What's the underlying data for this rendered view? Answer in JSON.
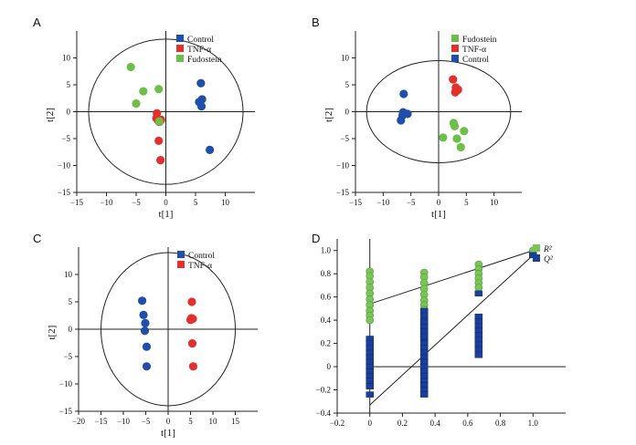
{
  "colors": {
    "control": "#1f4fa8",
    "tnf": "#e3302d",
    "fudostein": "#6cbf4a",
    "r2": "#7cc45a",
    "q2": "#1b3f99",
    "axis": "#222222"
  },
  "chart_data": [
    {
      "panel": "A",
      "type": "scatter",
      "xlabel": "t[1]",
      "ylabel": "t[2]",
      "xlim": [
        -15,
        15
      ],
      "ylim": [
        -15,
        15
      ],
      "xticks": [
        -15,
        -10,
        -5,
        0,
        5,
        10
      ],
      "yticks": [
        -15,
        -10,
        -5,
        0,
        5,
        10
      ],
      "ellipse": {
        "rx": 13,
        "ry": 13.5
      },
      "legend": {
        "position": "top-right",
        "entries": [
          "Control",
          "TNF-α",
          "Fudostein"
        ]
      },
      "series": [
        {
          "name": "Control",
          "color_key": "control",
          "x": [
            5.9,
            6.1,
            5.6,
            6.0,
            7.4
          ],
          "y": [
            5.3,
            2.3,
            1.8,
            1.0,
            -7.1
          ]
        },
        {
          "name": "TNF-α",
          "color_key": "tnf",
          "x": [
            -1.5,
            -1.3,
            -1.1,
            -0.8,
            -1.2,
            -1.6,
            -0.9
          ],
          "y": [
            -0.3,
            -1.6,
            -1.9,
            -1.5,
            -5.4,
            -1.2,
            -9.0
          ]
        },
        {
          "name": "Fudostein",
          "color_key": "fudostein",
          "x": [
            -5.9,
            -3.8,
            -1.2,
            -5.0,
            -1.1
          ],
          "y": [
            8.3,
            3.8,
            4.2,
            1.5,
            -1.8
          ]
        }
      ]
    },
    {
      "panel": "B",
      "type": "scatter",
      "xlabel": "t[1]",
      "ylabel": "t[2]",
      "xlim": [
        -15,
        15
      ],
      "ylim": [
        -15,
        15
      ],
      "xticks": [
        -15,
        -10,
        -5,
        0,
        5,
        10
      ],
      "yticks": [
        -15,
        -10,
        -5,
        0,
        5,
        10
      ],
      "ellipse": {
        "rx": 13,
        "ry": 9.5
      },
      "legend": {
        "position": "top-right",
        "entries": [
          "Fudostein",
          "TNF-α",
          "Control"
        ]
      },
      "series": [
        {
          "name": "Fudostein",
          "color_key": "fudostein",
          "x": [
            2.7,
            2.9,
            4.6,
            0.8,
            3.3,
            4.0
          ],
          "y": [
            -2.1,
            -2.7,
            -3.6,
            -4.8,
            -5.0,
            -6.6
          ]
        },
        {
          "name": "TNF-α",
          "color_key": "tnf",
          "x": [
            2.6,
            3.1,
            3.3,
            3.0,
            3.1,
            3.5
          ],
          "y": [
            6.0,
            4.5,
            3.9,
            3.6,
            3.8,
            4.1
          ]
        },
        {
          "name": "Control",
          "color_key": "control",
          "x": [
            -6.3,
            -6.4,
            -6.2,
            -5.6,
            -6.5,
            -6.8
          ],
          "y": [
            3.3,
            -0.1,
            -0.4,
            -0.4,
            -0.7,
            -1.6
          ]
        }
      ]
    },
    {
      "panel": "C",
      "type": "scatter",
      "xlabel": "t[1]",
      "ylabel": "t[2]",
      "xlim": [
        -20,
        20
      ],
      "ylim": [
        -15,
        15
      ],
      "xticks": [
        -20,
        -15,
        -10,
        -5,
        0,
        5,
        10,
        15
      ],
      "yticks": [
        -15,
        -10,
        -5,
        0,
        5,
        10
      ],
      "ellipse": {
        "rx": 15,
        "ry": 14
      },
      "legend": {
        "position": "top-right",
        "entries": [
          "Control",
          "TNF-α"
        ]
      },
      "series": [
        {
          "name": "Control",
          "color_key": "control",
          "x": [
            -5.8,
            -5.5,
            -5.1,
            -5.2,
            -4.8,
            -4.8
          ],
          "y": [
            5.2,
            2.6,
            1.1,
            -0.3,
            -3.2,
            -6.8
          ]
        },
        {
          "name": "TNF-α",
          "color_key": "tnf",
          "x": [
            5.3,
            5.2,
            5.0,
            5.5,
            5.4,
            5.6
          ],
          "y": [
            5.0,
            2.0,
            1.7,
            1.9,
            -2.6,
            -6.8
          ]
        }
      ]
    },
    {
      "panel": "D",
      "type": "scatter",
      "title": "",
      "xlim": [
        -0.2,
        1.2
      ],
      "ylim": [
        -0.4,
        1.1
      ],
      "xticks": [
        -0.2,
        0,
        0.2,
        0.4,
        0.6,
        0.8,
        1.0
      ],
      "xtick_labels": [
        "−0.2",
        "0",
        "0.2",
        "0.4",
        "0.6",
        "0.8",
        "1.0"
      ],
      "yticks": [
        -0.4,
        -0.2,
        0,
        0.2,
        0.4,
        0.6,
        0.8,
        1.0
      ],
      "ytick_labels": [
        "−0.4",
        "−0.2",
        "0",
        "0.2",
        "0.4",
        "0.6",
        "0.8",
        "1.0"
      ],
      "legend": {
        "position": "top-right",
        "entries": [
          "R²",
          "Q²"
        ]
      },
      "series": [
        {
          "name": "R²",
          "color_key": "r2",
          "marker": "circle",
          "x": [
            0,
            0,
            0,
            0,
            0,
            0,
            0,
            0,
            0,
            0,
            0.333,
            0.333,
            0.333,
            0.333,
            0.333,
            0.333,
            0.333,
            0.333,
            0.333,
            0.667,
            0.667,
            0.667,
            0.667,
            0.667,
            0.667,
            1.0
          ],
          "y": [
            0.82,
            0.78,
            0.73,
            0.68,
            0.63,
            0.58,
            0.53,
            0.48,
            0.44,
            0.4,
            0.81,
            0.77,
            0.72,
            0.67,
            0.62,
            0.57,
            0.53,
            0.49,
            0.45,
            0.88,
            0.84,
            0.8,
            0.76,
            0.72,
            0.68,
            1.0
          ]
        },
        {
          "name": "Q²",
          "color_key": "q2",
          "marker": "square",
          "x": [
            0,
            0,
            0,
            0,
            0,
            0,
            0,
            0,
            0,
            0,
            0,
            0,
            0.333,
            0.333,
            0.333,
            0.333,
            0.333,
            0.333,
            0.333,
            0.333,
            0.333,
            0.333,
            0.333,
            0.333,
            0.333,
            0.333,
            0.333,
            0.333,
            0.333,
            0.333,
            0.333,
            0.333,
            0.333,
            0.333,
            0.333,
            0.667,
            0.667,
            0.667,
            0.667,
            0.667,
            0.667,
            0.667,
            0.667,
            0.667,
            0.667,
            1.0
          ],
          "y": [
            0.24,
            0.2,
            0.16,
            0.12,
            0.08,
            0.04,
            0.0,
            -0.04,
            -0.08,
            -0.12,
            -0.17,
            -0.24,
            0.48,
            0.44,
            0.4,
            0.36,
            0.32,
            0.28,
            0.24,
            0.2,
            0.16,
            0.12,
            0.08,
            0.04,
            0.0,
            -0.04,
            -0.08,
            -0.12,
            -0.16,
            -0.2,
            -0.24,
            0.38,
            0.34,
            0.3,
            0.26,
            0.63,
            0.43,
            0.39,
            0.35,
            0.31,
            0.27,
            0.23,
            0.19,
            0.15,
            0.1,
            0.96
          ]
        }
      ],
      "regression_lines": [
        {
          "name": "R²",
          "from": [
            0,
            0.54
          ],
          "to": [
            1.0,
            1.0
          ]
        },
        {
          "name": "Q²",
          "from": [
            0,
            -0.33
          ],
          "to": [
            1.0,
            0.96
          ]
        }
      ]
    }
  ]
}
